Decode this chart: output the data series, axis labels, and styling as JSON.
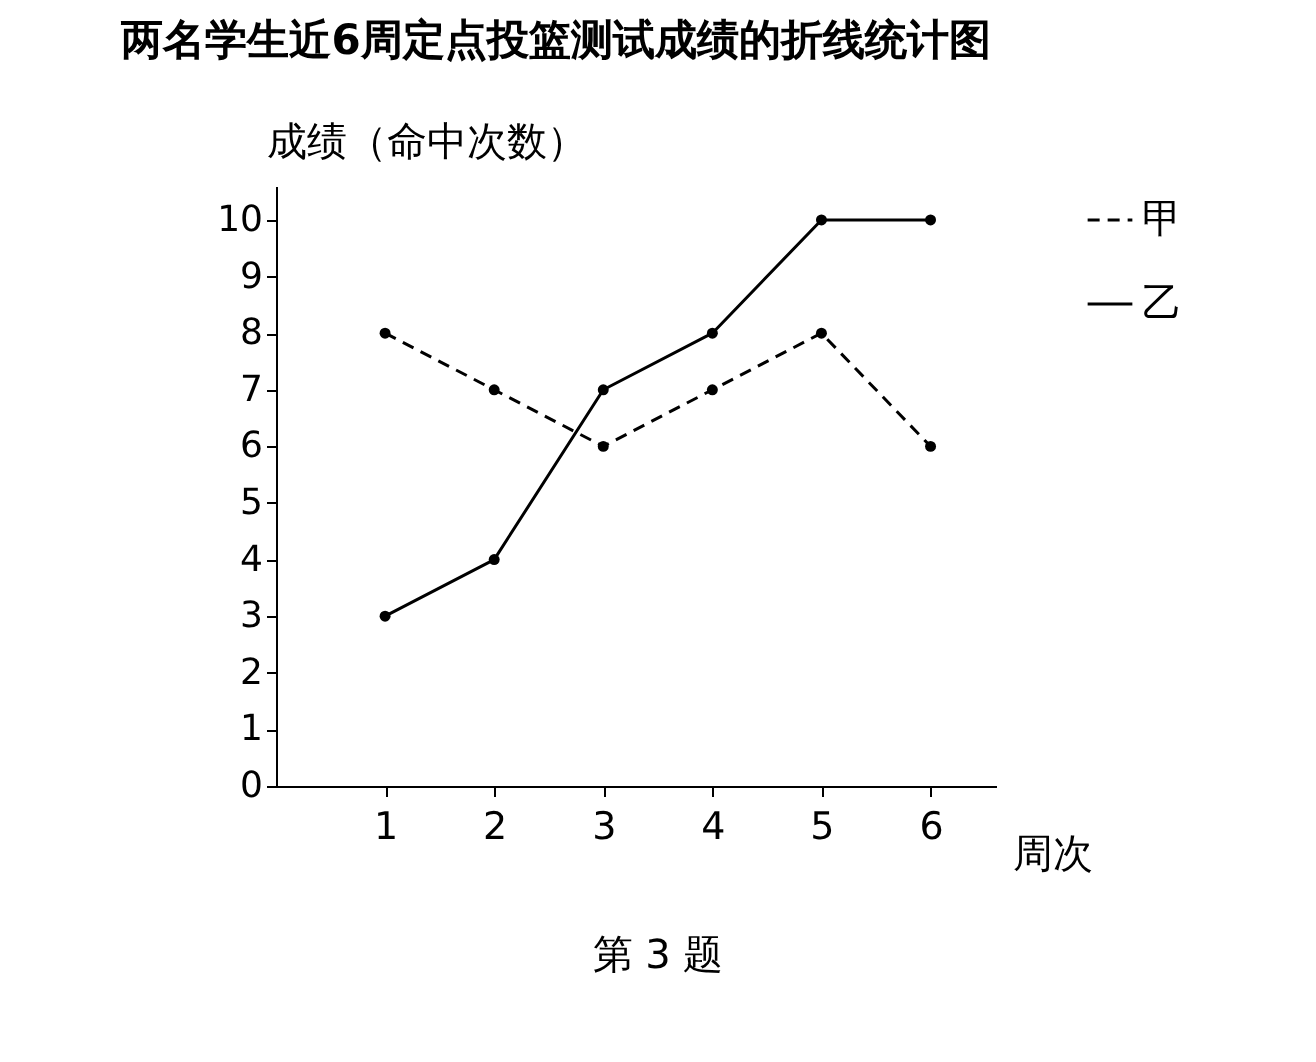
{
  "chart_data": {
    "type": "line",
    "title": "两名学生近6周定点投篮测试成绩的折线统计图",
    "xlabel": "周次",
    "ylabel": "成绩（命中次数）",
    "x": [
      1,
      2,
      3,
      4,
      5,
      6
    ],
    "series": [
      {
        "name": "甲",
        "color": "#000000",
        "line_style": "dashed",
        "values": [
          8,
          7,
          6,
          7,
          8,
          6
        ]
      },
      {
        "name": "乙",
        "color": "#000000",
        "line_style": "solid",
        "values": [
          3,
          4,
          7,
          8,
          10,
          10
        ]
      }
    ],
    "xlim": [
      0,
      6.6
    ],
    "xticks": [
      1,
      2,
      3,
      4,
      5,
      6
    ],
    "ylim": [
      0,
      10.6
    ],
    "yticks": [
      0,
      1,
      2,
      3,
      4,
      5,
      6,
      7,
      8,
      9,
      10
    ],
    "marker": "circle",
    "legend": "right",
    "grid": false,
    "annotations": [
      "第 3 题"
    ]
  }
}
